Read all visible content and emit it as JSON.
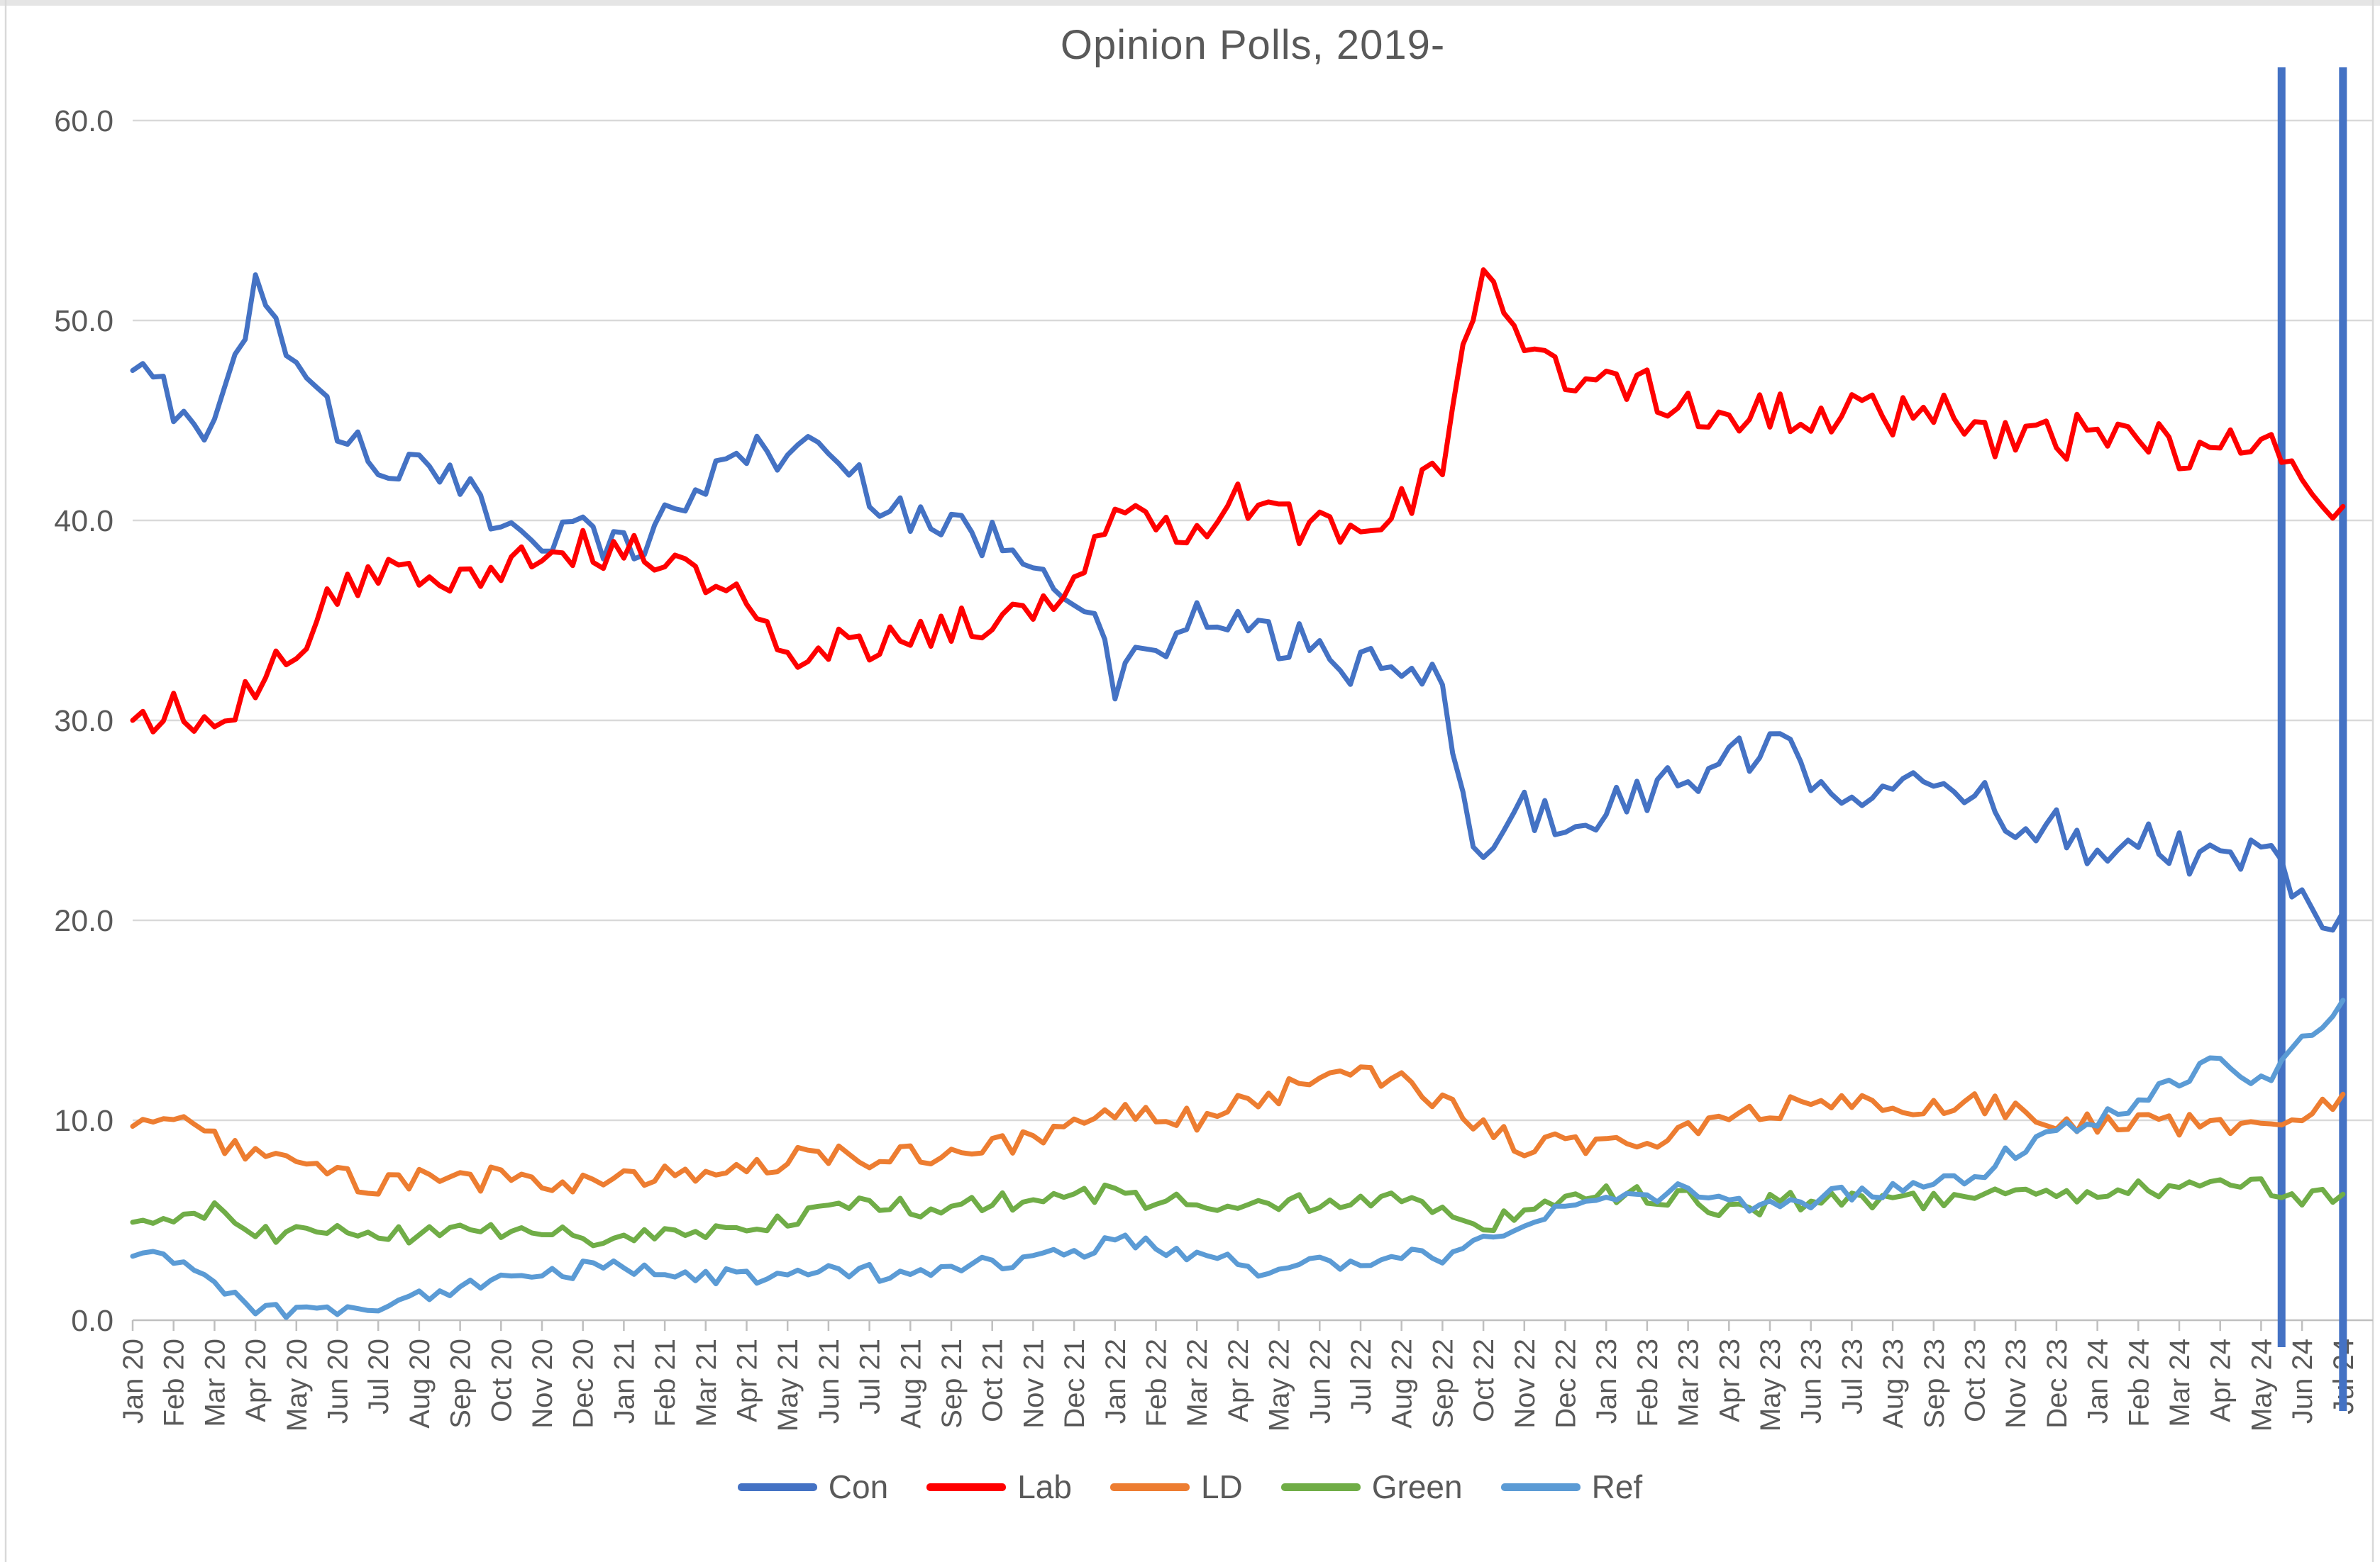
{
  "page": {
    "background": "#ffffff",
    "top_edge_color": "#e5e5e5"
  },
  "chart_data": {
    "type": "line",
    "title": "Opinion Polls, 2019-",
    "title_color": "#595959",
    "label_color": "#595959",
    "grid_color": "#d9d9d9",
    "axis_color": "#bfbfbf",
    "grid": "horizontal",
    "legend_position": "bottom",
    "ylim": [
      0,
      60
    ],
    "ytick_step": 10,
    "ytick_decimals": 1,
    "x_labels": [
      "Jan 20",
      "Feb 20",
      "Mar 20",
      "Apr 20",
      "May 20",
      "Jun 20",
      "Jul 20",
      "Aug 20",
      "Sep 20",
      "Oct 20",
      "Nov 20",
      "Dec 20",
      "Jan 21",
      "Feb 21",
      "Mar 21",
      "Apr 21",
      "May 21",
      "Jun 21",
      "Jul 21",
      "Aug 21",
      "Sep 21",
      "Oct 21",
      "Nov 21",
      "Dec 21",
      "Jan 22",
      "Feb 22",
      "Mar 22",
      "Apr 22",
      "May 22",
      "Jun 22",
      "Jul 22",
      "Aug 22",
      "Sep 22",
      "Oct 22",
      "Nov 22",
      "Dec 22",
      "Jan 23",
      "Feb 23",
      "Mar 23",
      "Apr 23",
      "May 23",
      "Jun 23",
      "Jul 23",
      "Aug 23",
      "Sep 23",
      "Oct 23",
      "Nov 23",
      "Dec 23",
      "Jan 24",
      "Feb 24",
      "Mar 24",
      "Apr 24",
      "May 24",
      "Jun 24",
      "Jul 24"
    ],
    "series": [
      {
        "name": "Con",
        "color": "#4472C4",
        "jitter": 1.1,
        "values": [
          47.5,
          46,
          44.5,
          51.5,
          48.5,
          44.5,
          43,
          42.5,
          41.5,
          40,
          39.5,
          39.5,
          38.5,
          40,
          42,
          43.5,
          43.5,
          43.5,
          41.5,
          40.5,
          39.5,
          39,
          38.5,
          36.5,
          32,
          33.5,
          35,
          34.5,
          34,
          33.5,
          32.5,
          32.5,
          31.5,
          22.5,
          25.5,
          25,
          25.5,
          26.5,
          27,
          28,
          28.5,
          27.5,
          26.5,
          27,
          26,
          26.5,
          25,
          24.5,
          23.5,
          24.5,
          23.5,
          23,
          23.5,
          21,
          20.4
        ]
      },
      {
        "name": "Lab",
        "color": "#FF0000",
        "jitter": 1.1,
        "values": [
          30,
          30.5,
          29,
          31.5,
          34,
          36,
          37.5,
          37,
          37.5,
          38,
          38.5,
          38.5,
          38.5,
          38.5,
          37,
          36,
          32.5,
          33.8,
          34,
          34.5,
          34.5,
          35,
          35.5,
          37.5,
          41,
          40.5,
          39.5,
          41,
          40,
          39.5,
          40,
          40.5,
          43,
          52.5,
          48,
          47.5,
          47,
          46.5,
          45.5,
          45,
          45.5,
          45.5,
          45.5,
          45,
          45.5,
          45,
          43.5,
          44,
          44.5,
          44,
          43.5,
          43.5,
          44.5,
          42.5,
          40.7
        ]
      },
      {
        "name": "LD",
        "color": "#ED7D31",
        "jitter": 0.6,
        "values": [
          9.7,
          10.3,
          9,
          8,
          7.8,
          7.2,
          6.8,
          7,
          6.8,
          7.2,
          6.8,
          7,
          7,
          7.2,
          7.5,
          7.8,
          8,
          8.2,
          8,
          8.3,
          8.5,
          8.7,
          9,
          9.5,
          10.3,
          10.5,
          10,
          10.8,
          11.3,
          12.2,
          12.3,
          11.8,
          11,
          9.8,
          8.5,
          8.8,
          9,
          9.2,
          9.3,
          9.8,
          10.5,
          10.8,
          10.7,
          10.5,
          10.6,
          10.8,
          10.5,
          10,
          9.8,
          10,
          9.8,
          9.5,
          9.8,
          10.3,
          11.3
        ]
      },
      {
        "name": "Green",
        "color": "#70AD47",
        "jitter": 0.5,
        "values": [
          4.9,
          4.6,
          5.5,
          4.2,
          4.5,
          4.4,
          4.3,
          4.2,
          4.5,
          4.6,
          4.4,
          4.2,
          4,
          4.2,
          4.5,
          4.8,
          5,
          5.5,
          5.8,
          5.6,
          5.7,
          5.8,
          6.2,
          6.5,
          6.2,
          6,
          6.1,
          5.8,
          5.6,
          6,
          6.1,
          5.9,
          5.5,
          4.8,
          5.3,
          5.8,
          6.3,
          6.2,
          6,
          5.5,
          5.8,
          6,
          6.1,
          5.9,
          6,
          6.2,
          6.4,
          6.5,
          6.3,
          6.8,
          6.4,
          6.6,
          6.9,
          6,
          6.3
        ]
      },
      {
        "name": "Ref",
        "color": "#5B9BD5",
        "jitter": 0.45,
        "values": [
          3.2,
          2.8,
          1.8,
          0.5,
          0.4,
          0.5,
          0.7,
          1.2,
          1.7,
          2,
          2.2,
          2.6,
          2.8,
          2.2,
          2.1,
          2.2,
          2.1,
          2.3,
          2.4,
          2.3,
          2.5,
          2.8,
          3.2,
          3.4,
          4,
          3.6,
          3.2,
          2.8,
          2.2,
          2.8,
          3,
          3.2,
          3.3,
          3.8,
          4.8,
          5.5,
          6.5,
          6.3,
          6.5,
          5.8,
          5.7,
          6,
          6.3,
          6.4,
          6.7,
          7.2,
          8.5,
          9.3,
          10,
          10.8,
          12,
          13,
          11.8,
          14,
          16
        ]
      }
    ],
    "event_lines": [
      {
        "x_index": 52.5,
        "color": "#4472C4",
        "top": 95,
        "bottom": 1900
      },
      {
        "x_index": 54.0,
        "color": "#4472C4",
        "top": 95,
        "bottom": 1990
      }
    ]
  }
}
